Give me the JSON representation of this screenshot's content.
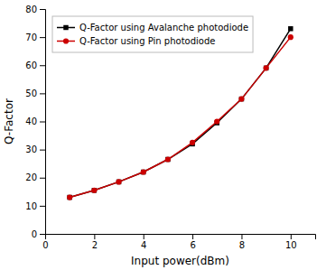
{
  "chart_data": {
    "type": "line",
    "x": [
      1,
      2,
      3,
      4,
      5,
      6,
      7,
      8,
      9,
      10
    ],
    "series": [
      {
        "name": "Q-Factor using Avalanche photodiode",
        "color": "#000000",
        "marker": "square",
        "values": [
          13,
          15.5,
          18.5,
          22,
          26.5,
          32,
          39.5,
          48,
          59,
          73
        ]
      },
      {
        "name": "Q-Factor using Pin photodiode",
        "color": "#cc0000",
        "marker": "circle",
        "values": [
          13,
          15.5,
          18.5,
          22,
          26.5,
          32.5,
          40,
          48,
          59,
          70
        ]
      }
    ],
    "x_label": "Input power(dBm)",
    "y_label": "Q-Factor",
    "xlim": [
      0,
      11
    ],
    "ylim": [
      0,
      80
    ],
    "xticks": [
      0,
      2,
      4,
      6,
      8,
      10
    ],
    "yticks": [
      0,
      10,
      20,
      30,
      40,
      50,
      60,
      70,
      80
    ],
    "grid": false,
    "legend": "upper left"
  }
}
